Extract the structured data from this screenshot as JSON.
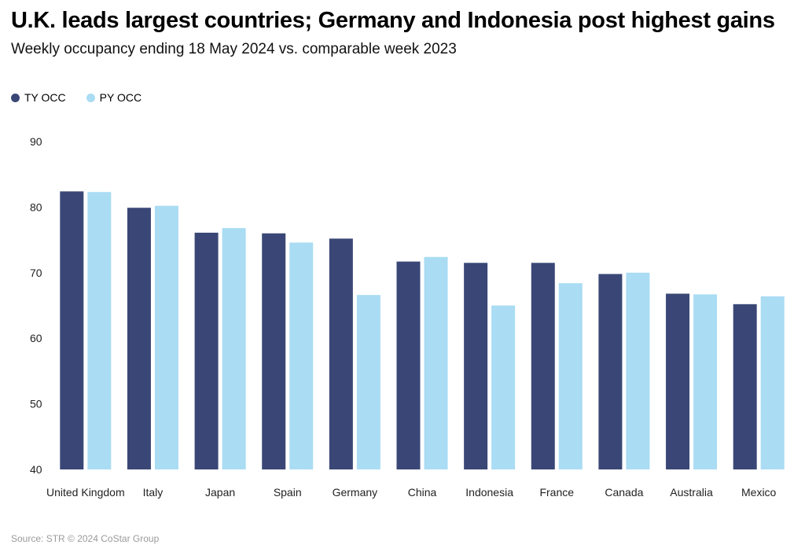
{
  "chart_data": {
    "type": "bar",
    "title": "U.K. leads largest countries; Germany and Indonesia post highest gains",
    "subtitle": "Weekly occupancy ending 18 May 2024 vs. comparable week 2023",
    "categories": [
      "United Kingdom",
      "Italy",
      "Japan",
      "Spain",
      "Germany",
      "China",
      "Indonesia",
      "France",
      "Canada",
      "Australia",
      "Mexico"
    ],
    "series": [
      {
        "name": "TY OCC",
        "color": "#3a4776",
        "values": [
          82.4,
          79.9,
          76.1,
          76.0,
          75.2,
          71.7,
          71.5,
          71.5,
          69.8,
          66.8,
          65.2
        ]
      },
      {
        "name": "PY OCC",
        "color": "#aadcf3",
        "values": [
          82.3,
          80.2,
          76.8,
          74.6,
          66.6,
          72.4,
          65.0,
          68.4,
          70.0,
          66.7,
          66.4
        ]
      }
    ],
    "ylim": [
      40,
      90
    ],
    "yticks": [
      90,
      80,
      70,
      60,
      50,
      40
    ],
    "grid": false,
    "legend": "top-left"
  },
  "source": "Source: STR © 2024 CoStar Group"
}
